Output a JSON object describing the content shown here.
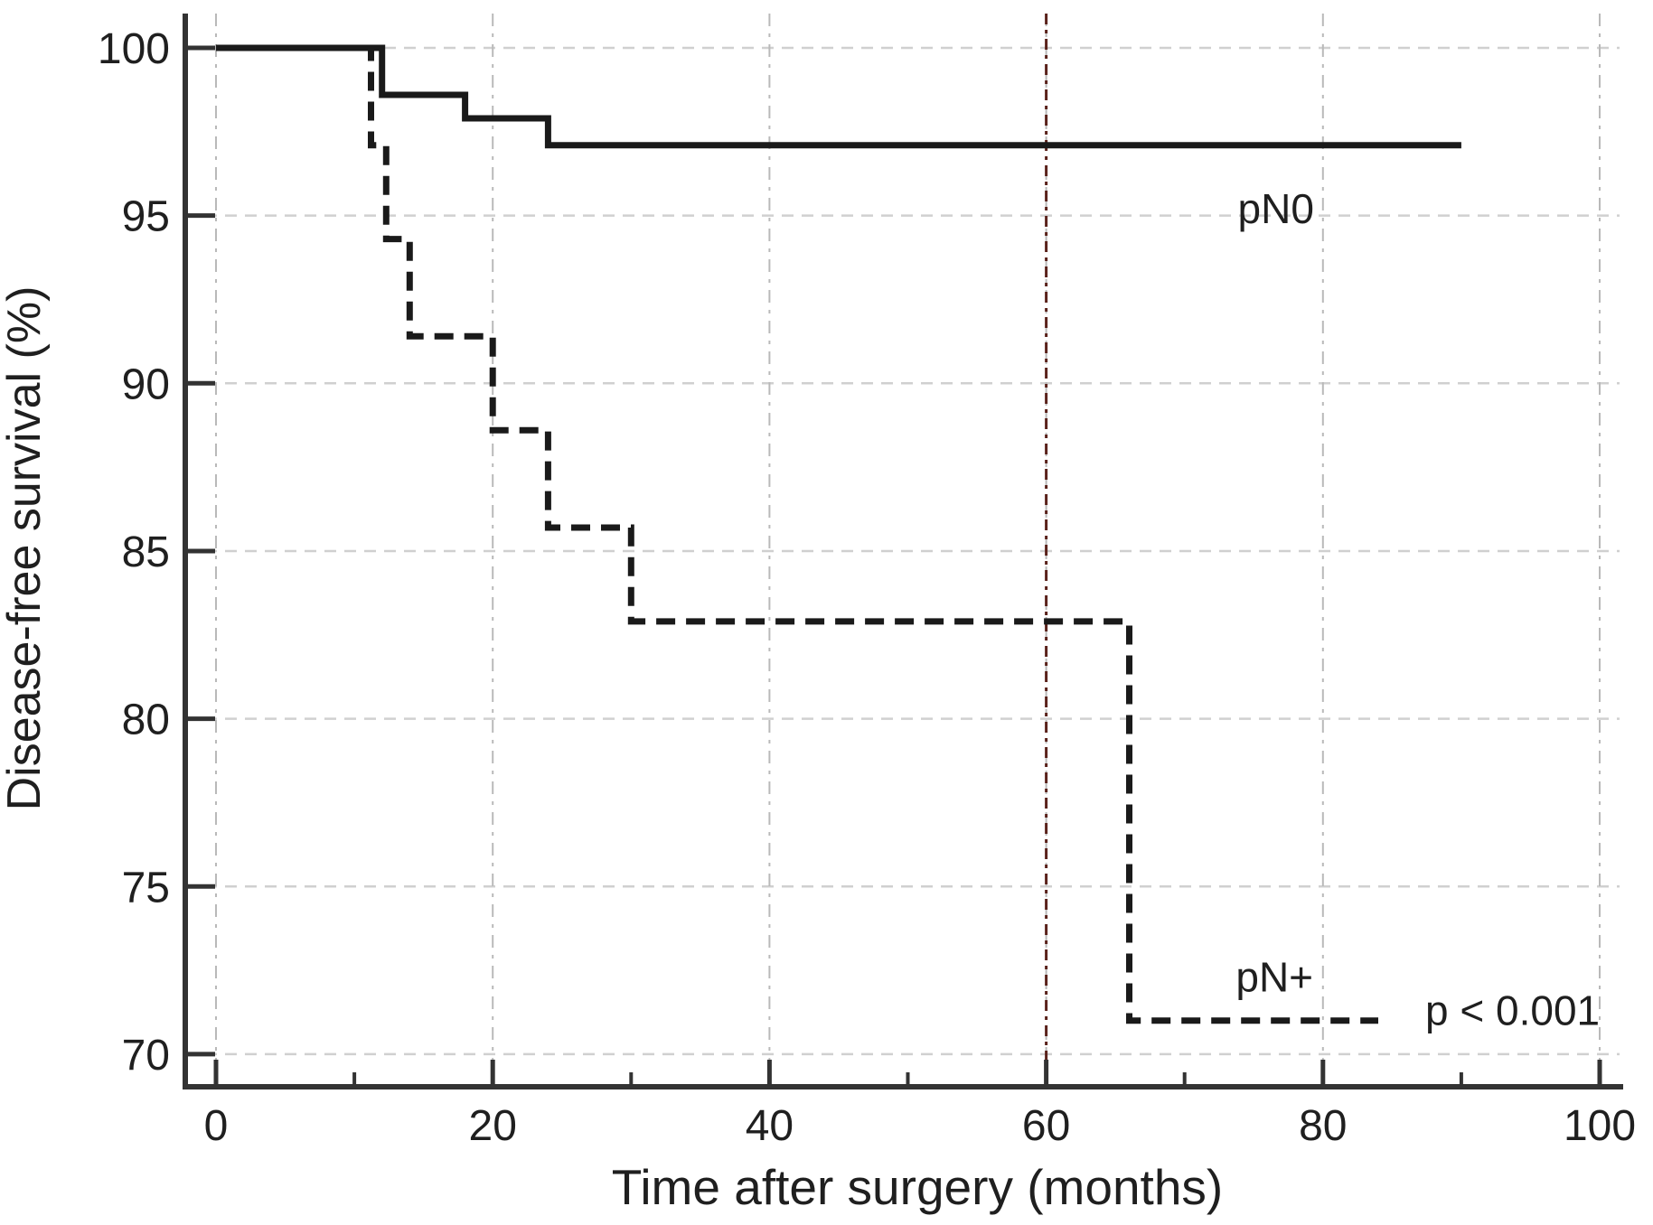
{
  "figure": {
    "background": "#ffffff",
    "text_color": "#1f1f1f",
    "axis_color": "#333333",
    "gridline_color": "#c6c6c6"
  },
  "chart_data": {
    "type": "line",
    "subtype": "kaplan-meier-step-curves",
    "title": "",
    "xlabel": "Time after surgery (months)",
    "ylabel": "Disease-free survival (%)",
    "xlim": [
      0,
      103
    ],
    "ylim": [
      69,
      101
    ],
    "x_ticks": [
      0,
      20,
      40,
      60,
      80,
      100
    ],
    "x_minor_ticks": [
      10,
      30,
      50,
      70,
      90
    ],
    "y_ticks": [
      70,
      75,
      80,
      85,
      90,
      95,
      100
    ],
    "grid": "dashed light-gray horizontal and vertical gridlines at major ticks",
    "legend_position": "labels drawn next to curves",
    "series": [
      {
        "name": "pN0",
        "style": "solid",
        "color": "#1a1a1a",
        "label": {
          "text": "pN0",
          "x": 76.6,
          "y": 95.2
        },
        "points": [
          [
            0,
            100
          ],
          [
            12,
            100
          ],
          [
            12,
            98.6
          ],
          [
            18,
            98.6
          ],
          [
            18,
            97.9
          ],
          [
            24,
            97.9
          ],
          [
            24,
            97.1
          ],
          [
            90,
            97.1
          ]
        ]
      },
      {
        "name": "pN+",
        "style": "dashed",
        "color": "#1a1a1a",
        "label": {
          "text": "pN+",
          "x": 76.5,
          "y": 72.3
        },
        "points": [
          [
            0,
            100
          ],
          [
            11.2,
            100
          ],
          [
            11.2,
            97.1
          ],
          [
            12.3,
            97.1
          ],
          [
            12.3,
            94.3
          ],
          [
            14,
            94.3
          ],
          [
            14,
            91.4
          ],
          [
            20,
            91.4
          ],
          [
            20,
            88.6
          ],
          [
            24,
            88.6
          ],
          [
            24,
            85.7
          ],
          [
            30,
            85.7
          ],
          [
            30,
            82.9
          ],
          [
            66,
            82.9
          ],
          [
            66,
            71
          ],
          [
            84,
            71
          ]
        ]
      }
    ],
    "reference_line": {
      "axis": "x",
      "value": 60,
      "style": "dash-dot",
      "color": "#5a221b"
    },
    "annotation": {
      "text": "p < 0.001",
      "x": 93.7,
      "y": 71.3
    }
  }
}
